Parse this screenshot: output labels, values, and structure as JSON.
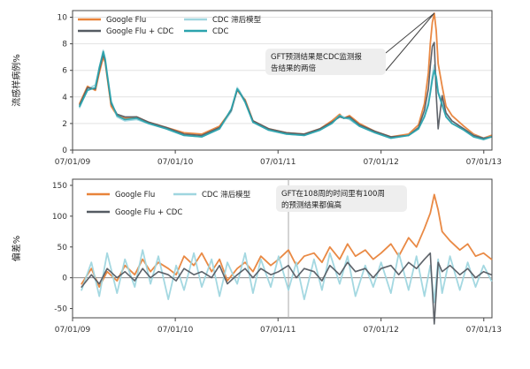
{
  "colors": {
    "google_flu": "#e8833a",
    "google_flu_cdc": "#555b62",
    "cdc_lagged": "#9fd6df",
    "cdc": "#2ba3ad",
    "grid": "#e2e2e2",
    "axis": "#444444",
    "callout_bg": "#eeeeee"
  },
  "chart_data": [
    {
      "type": "line",
      "ylabel": "流感样病例%",
      "ylim": [
        0,
        10.5
      ],
      "yticks": [
        "0",
        "2",
        "4",
        "6",
        "8",
        "10"
      ],
      "x_tick_labels": [
        "07/01/09",
        "07/01/10",
        "07/01/11",
        "07/01/12",
        "07/01/13"
      ],
      "x_tick_dates": [
        "2009-07-01",
        "2010-07-01",
        "2011-07-01",
        "2012-07-01",
        "2013-07-01"
      ],
      "x_range": [
        "2009-07-01",
        "2013-07-30"
      ],
      "grid": true,
      "legend": [
        "Google Flu",
        "CDC 滞后模型",
        "Google Flu + CDC",
        "CDC"
      ],
      "legend_placement": "top-left",
      "annotation": "GFT预测结果是CDC监测报告结果的两倍",
      "annotation_lines": [
        "GFT预测结果是CDC监测报",
        "告结果的两倍"
      ],
      "series": [
        {
          "name": "Google Flu",
          "color": "#e8833a",
          "x": [
            "2009-07-26",
            "2009-08-23",
            "2009-09-20",
            "2009-10-04",
            "2009-10-18",
            "2009-10-25",
            "2009-11-01",
            "2009-11-15",
            "2009-12-06",
            "2010-01-03",
            "2010-02-14",
            "2010-03-28",
            "2010-05-30",
            "2010-08-01",
            "2010-10-03",
            "2010-12-05",
            "2011-01-16",
            "2011-02-06",
            "2011-02-13",
            "2011-03-06",
            "2011-04-03",
            "2011-05-29",
            "2011-07-31",
            "2011-10-02",
            "2011-11-27",
            "2012-01-08",
            "2012-02-05",
            "2012-02-19",
            "2012-03-11",
            "2012-04-15",
            "2012-06-10",
            "2012-08-05",
            "2012-10-07",
            "2012-11-11",
            "2012-12-02",
            "2012-12-16",
            "2012-12-23",
            "2012-12-30",
            "2013-01-06",
            "2013-01-13",
            "2013-01-20",
            "2013-02-03",
            "2013-02-17",
            "2013-03-10",
            "2013-04-21",
            "2013-05-26",
            "2013-06-30",
            "2013-07-28"
          ],
          "y": [
            3.5,
            4.8,
            4.5,
            5.8,
            7.0,
            6.6,
            5.5,
            3.3,
            2.6,
            2.4,
            2.5,
            2.1,
            1.7,
            1.3,
            1.2,
            1.8,
            3.0,
            4.6,
            4.3,
            3.8,
            2.2,
            1.6,
            1.3,
            1.2,
            1.6,
            2.2,
            2.7,
            2.4,
            2.6,
            2.0,
            1.4,
            1.0,
            1.2,
            1.9,
            3.5,
            5.8,
            8.0,
            9.6,
            10.3,
            9.0,
            6.5,
            4.8,
            3.3,
            2.6,
            1.8,
            1.2,
            0.9,
            1.1
          ]
        },
        {
          "name": "CDC 滞后模型",
          "color": "#9fd6df",
          "x": [
            "2009-07-26",
            "2009-08-23",
            "2009-09-20",
            "2009-10-04",
            "2009-10-18",
            "2009-10-25",
            "2009-11-01",
            "2009-11-15",
            "2009-12-06",
            "2010-01-03",
            "2010-02-14",
            "2010-03-28",
            "2010-05-30",
            "2010-08-01",
            "2010-10-03",
            "2010-12-05",
            "2011-01-16",
            "2011-02-06",
            "2011-02-13",
            "2011-03-06",
            "2011-04-03",
            "2011-05-29",
            "2011-07-31",
            "2011-10-02",
            "2011-11-27",
            "2012-01-08",
            "2012-02-05",
            "2012-02-19",
            "2012-03-11",
            "2012-04-15",
            "2012-06-10",
            "2012-08-05",
            "2012-10-07",
            "2012-11-11",
            "2012-12-02",
            "2012-12-16",
            "2012-12-23",
            "2012-12-30",
            "2013-01-06",
            "2013-01-13",
            "2013-01-20",
            "2013-02-03",
            "2013-02-17",
            "2013-03-10",
            "2013-04-21",
            "2013-05-26",
            "2013-06-30",
            "2013-07-28"
          ],
          "y": [
            3.2,
            4.6,
            4.9,
            6.1,
            7.5,
            6.9,
            5.8,
            3.7,
            2.5,
            2.2,
            2.3,
            2.0,
            1.6,
            1.1,
            1.0,
            1.6,
            2.9,
            4.7,
            4.5,
            3.7,
            2.1,
            1.5,
            1.2,
            1.1,
            1.5,
            2.0,
            2.6,
            2.5,
            2.3,
            1.8,
            1.3,
            0.9,
            1.1,
            1.6,
            2.6,
            3.6,
            4.4,
            5.6,
            6.4,
            5.5,
            4.4,
            3.6,
            2.6,
            2.0,
            1.6,
            1.1,
            0.9,
            1.0
          ]
        },
        {
          "name": "Google Flu + CDC",
          "color": "#555b62",
          "x": [
            "2009-07-26",
            "2009-08-23",
            "2009-09-20",
            "2009-10-04",
            "2009-10-18",
            "2009-10-25",
            "2009-11-01",
            "2009-11-15",
            "2009-12-06",
            "2010-01-03",
            "2010-02-14",
            "2010-03-28",
            "2010-05-30",
            "2010-08-01",
            "2010-10-03",
            "2010-12-05",
            "2011-01-16",
            "2011-02-06",
            "2011-02-13",
            "2011-03-06",
            "2011-04-03",
            "2011-05-29",
            "2011-07-31",
            "2011-10-02",
            "2011-11-27",
            "2012-01-08",
            "2012-02-05",
            "2012-02-19",
            "2012-03-11",
            "2012-04-15",
            "2012-06-10",
            "2012-08-05",
            "2012-10-07",
            "2012-11-11",
            "2012-12-02",
            "2012-12-16",
            "2012-12-23",
            "2012-12-30",
            "2013-01-06",
            "2013-01-13",
            "2013-01-20",
            "2013-02-03",
            "2013-02-17",
            "2013-03-10",
            "2013-04-21",
            "2013-05-26",
            "2013-06-30",
            "2013-07-28"
          ],
          "y": [
            3.4,
            4.7,
            4.6,
            6.0,
            7.2,
            6.7,
            5.6,
            3.5,
            2.7,
            2.5,
            2.5,
            2.1,
            1.7,
            1.2,
            1.1,
            1.7,
            3.0,
            4.5,
            4.4,
            3.7,
            2.2,
            1.6,
            1.3,
            1.2,
            1.6,
            2.1,
            2.5,
            2.4,
            2.5,
            1.9,
            1.4,
            1.0,
            1.1,
            1.7,
            3.0,
            4.6,
            6.3,
            7.8,
            8.1,
            4.2,
            1.6,
            4.1,
            2.8,
            2.2,
            1.6,
            1.1,
            0.9,
            1.0
          ]
        },
        {
          "name": "CDC",
          "color": "#2ba3ad",
          "x": [
            "2009-07-26",
            "2009-08-23",
            "2009-09-20",
            "2009-10-04",
            "2009-10-18",
            "2009-10-25",
            "2009-11-01",
            "2009-11-15",
            "2009-12-06",
            "2010-01-03",
            "2010-02-14",
            "2010-03-28",
            "2010-05-30",
            "2010-08-01",
            "2010-10-03",
            "2010-12-05",
            "2011-01-16",
            "2011-02-06",
            "2011-02-13",
            "2011-03-06",
            "2011-04-03",
            "2011-05-29",
            "2011-07-31",
            "2011-10-02",
            "2011-11-27",
            "2012-01-08",
            "2012-02-05",
            "2012-02-19",
            "2012-03-11",
            "2012-04-15",
            "2012-06-10",
            "2012-08-05",
            "2012-10-07",
            "2012-11-11",
            "2012-12-02",
            "2012-12-16",
            "2012-12-23",
            "2012-12-30",
            "2013-01-06",
            "2013-01-13",
            "2013-01-20",
            "2013-02-03",
            "2013-02-17",
            "2013-03-10",
            "2013-04-21",
            "2013-05-26",
            "2013-06-30",
            "2013-07-28"
          ],
          "y": [
            3.3,
            4.5,
            4.7,
            6.2,
            7.4,
            6.8,
            5.7,
            3.6,
            2.6,
            2.3,
            2.4,
            2.0,
            1.6,
            1.1,
            1.0,
            1.6,
            3.1,
            4.6,
            4.4,
            3.6,
            2.1,
            1.5,
            1.2,
            1.1,
            1.5,
            2.0,
            2.6,
            2.4,
            2.4,
            1.8,
            1.3,
            0.9,
            1.1,
            1.6,
            2.5,
            3.4,
            4.3,
            5.3,
            6.0,
            5.5,
            4.3,
            3.4,
            2.5,
            2.0,
            1.5,
            1.0,
            0.8,
            1.0
          ]
        }
      ],
      "peak_pointer": {
        "x": "2013-01-06",
        "y": 10.3
      }
    },
    {
      "type": "line",
      "ylabel": "偏差%",
      "ylim": [
        -65,
        160
      ],
      "yticks": [
        "-50",
        "0",
        "50",
        "100",
        "150"
      ],
      "x_tick_labels": [
        "07/01/09",
        "07/01/10",
        "07/01/11",
        "07/01/12",
        "07/01/13"
      ],
      "x_tick_dates": [
        "2009-07-01",
        "2010-07-01",
        "2011-07-01",
        "2012-07-01",
        "2013-07-01"
      ],
      "x_range": [
        "2009-07-01",
        "2013-07-30"
      ],
      "grid": false,
      "zero_line": true,
      "legend": [
        "Google Flu",
        "CDC 滞后模型",
        "Google Flu + CDC"
      ],
      "legend_placement": "top-left",
      "annotation": "GFT在108周的时间里有100周的预测结果都偏高",
      "annotation_lines": [
        "GFT在108周的时间里有100周",
        "的预测结果都偏高"
      ],
      "marker_x": "2011-08-07",
      "series": [
        {
          "name": "Google Flu",
          "color": "#e8833a",
          "x": [
            "2009-08-02",
            "2009-09-06",
            "2009-10-04",
            "2009-11-01",
            "2009-12-06",
            "2010-01-03",
            "2010-02-07",
            "2010-03-07",
            "2010-04-04",
            "2010-05-02",
            "2010-06-06",
            "2010-07-04",
            "2010-08-01",
            "2010-09-05",
            "2010-10-03",
            "2010-11-07",
            "2010-12-05",
            "2011-01-02",
            "2011-02-06",
            "2011-03-06",
            "2011-04-03",
            "2011-05-01",
            "2011-06-05",
            "2011-07-03",
            "2011-08-07",
            "2011-09-04",
            "2011-10-02",
            "2011-11-06",
            "2011-12-04",
            "2012-01-01",
            "2012-02-05",
            "2012-03-04",
            "2012-04-01",
            "2012-05-06",
            "2012-06-03",
            "2012-07-01",
            "2012-08-05",
            "2012-09-02",
            "2012-10-07",
            "2012-11-04",
            "2012-12-02",
            "2012-12-23",
            "2013-01-06",
            "2013-01-20",
            "2013-02-03",
            "2013-03-03",
            "2013-04-07",
            "2013-05-05",
            "2013-06-02",
            "2013-06-30",
            "2013-07-28"
          ],
          "y": [
            -10,
            15,
            -15,
            10,
            -5,
            20,
            5,
            30,
            10,
            25,
            15,
            5,
            35,
            20,
            40,
            10,
            30,
            -5,
            15,
            25,
            10,
            35,
            20,
            30,
            45,
            20,
            35,
            40,
            25,
            50,
            30,
            55,
            35,
            45,
            30,
            40,
            55,
            35,
            65,
            50,
            80,
            105,
            135,
            110,
            75,
            60,
            45,
            55,
            35,
            40,
            30
          ]
        },
        {
          "name": "CDC 滞后模型",
          "color": "#9fd6df",
          "x": [
            "2009-08-02",
            "2009-09-06",
            "2009-10-04",
            "2009-11-01",
            "2009-12-06",
            "2010-01-03",
            "2010-02-07",
            "2010-03-07",
            "2010-04-04",
            "2010-05-02",
            "2010-06-06",
            "2010-07-04",
            "2010-08-01",
            "2010-09-05",
            "2010-10-03",
            "2010-11-07",
            "2010-12-05",
            "2011-01-02",
            "2011-02-06",
            "2011-03-06",
            "2011-04-03",
            "2011-05-01",
            "2011-06-05",
            "2011-07-03",
            "2011-08-07",
            "2011-09-04",
            "2011-10-02",
            "2011-11-06",
            "2011-12-04",
            "2012-01-01",
            "2012-02-05",
            "2012-03-04",
            "2012-04-01",
            "2012-05-06",
            "2012-06-03",
            "2012-07-01",
            "2012-08-05",
            "2012-09-02",
            "2012-10-07",
            "2012-11-04",
            "2012-12-02",
            "2012-12-23",
            "2013-01-06",
            "2013-01-20",
            "2013-02-03",
            "2013-03-03",
            "2013-04-07",
            "2013-05-05",
            "2013-06-02",
            "2013-06-30",
            "2013-07-28"
          ],
          "y": [
            -20,
            25,
            -30,
            40,
            -25,
            30,
            -15,
            45,
            -10,
            35,
            -35,
            20,
            -20,
            40,
            -15,
            30,
            -30,
            25,
            -10,
            40,
            -25,
            30,
            -15,
            35,
            -20,
            25,
            -35,
            30,
            -20,
            40,
            -10,
            35,
            -30,
            20,
            -15,
            25,
            -25,
            40,
            -20,
            35,
            -30,
            20,
            -40,
            30,
            -25,
            35,
            -20,
            25,
            -15,
            20,
            -5
          ]
        },
        {
          "name": "Google Flu + CDC",
          "color": "#555b62",
          "x": [
            "2009-08-02",
            "2009-09-06",
            "2009-10-04",
            "2009-11-01",
            "2009-12-06",
            "2010-01-03",
            "2010-02-07",
            "2010-03-07",
            "2010-04-04",
            "2010-05-02",
            "2010-06-06",
            "2010-07-04",
            "2010-08-01",
            "2010-09-05",
            "2010-10-03",
            "2010-11-07",
            "2010-12-05",
            "2011-01-02",
            "2011-02-06",
            "2011-03-06",
            "2011-04-03",
            "2011-05-01",
            "2011-06-05",
            "2011-07-03",
            "2011-08-07",
            "2011-09-04",
            "2011-10-02",
            "2011-11-06",
            "2011-12-04",
            "2012-01-01",
            "2012-02-05",
            "2012-03-04",
            "2012-04-01",
            "2012-05-06",
            "2012-06-03",
            "2012-07-01",
            "2012-08-05",
            "2012-09-02",
            "2012-10-07",
            "2012-11-04",
            "2012-12-02",
            "2012-12-23",
            "2013-01-06",
            "2013-01-20",
            "2013-02-03",
            "2013-03-03",
            "2013-04-07",
            "2013-05-05",
            "2013-06-02",
            "2013-06-30",
            "2013-07-28"
          ],
          "y": [
            -15,
            5,
            -10,
            15,
            0,
            10,
            -5,
            15,
            0,
            10,
            5,
            -5,
            15,
            5,
            10,
            0,
            20,
            -10,
            5,
            15,
            0,
            15,
            5,
            10,
            20,
            0,
            15,
            10,
            -5,
            20,
            5,
            25,
            10,
            15,
            0,
            15,
            20,
            5,
            25,
            15,
            30,
            40,
            -75,
            25,
            10,
            20,
            5,
            15,
            0,
            10,
            5
          ]
        }
      ]
    }
  ]
}
